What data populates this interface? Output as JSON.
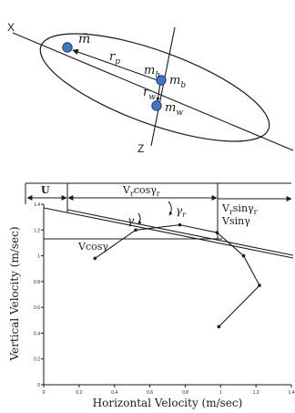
{
  "colors": {
    "ink": "#1a1a1a",
    "mass_fill": "#3f76c4",
    "mass_stroke": "#1d3f6e"
  },
  "top_diagram": {
    "axis_x_label": "X",
    "axis_z_label": "Z",
    "label_mbar": "m̄",
    "label_rp": "r",
    "label_rp_sub": "p",
    "label_mh": "m",
    "label_mh_sub": "h",
    "label_mb": "m",
    "label_mb_sub": "b",
    "label_rw": "r",
    "label_rw_sub": "w",
    "label_mw": "m",
    "label_mw_sub": "w"
  },
  "chart_data": {
    "type": "line",
    "xlabel": "Horizontal Velocity (m/sec)",
    "ylabel": "Vertical Velocity (m/sec)",
    "xlim": [
      0,
      1.4
    ],
    "ylim": [
      0,
      1.4
    ],
    "x_ticks": [
      "0",
      "0.2",
      "0.4",
      "0.6",
      "0.8",
      "1",
      "1.2",
      "1.4"
    ],
    "y_ticks": [
      "0",
      "0.2",
      "0.4",
      "0.6",
      "0.8",
      "1",
      "1.2",
      "1.4"
    ],
    "grid": false,
    "series": [
      {
        "points": [
          [
            0.29,
            0.98
          ],
          [
            0.52,
            1.2
          ],
          [
            0.77,
            1.24
          ],
          [
            0.98,
            1.18
          ],
          [
            1.13,
            1.0
          ],
          [
            1.22,
            0.77
          ],
          [
            0.99,
            0.45
          ]
        ]
      }
    ],
    "annotations": {
      "U": "U",
      "vr_cos_main": "V",
      "vr_cos_sub1": "r",
      "vr_cos_mid": "cosγ",
      "vr_cos_sub2": "r",
      "vr_sin_main": "V",
      "vr_sin_sub1": "r",
      "vr_sin_mid": "sinγ",
      "vr_sin_sub2": "r",
      "vsin": "Vsinγ",
      "vcos": "Vcosγ",
      "gamma": "γ",
      "gamma_r_main": "γ",
      "gamma_r_sub": "r"
    }
  }
}
